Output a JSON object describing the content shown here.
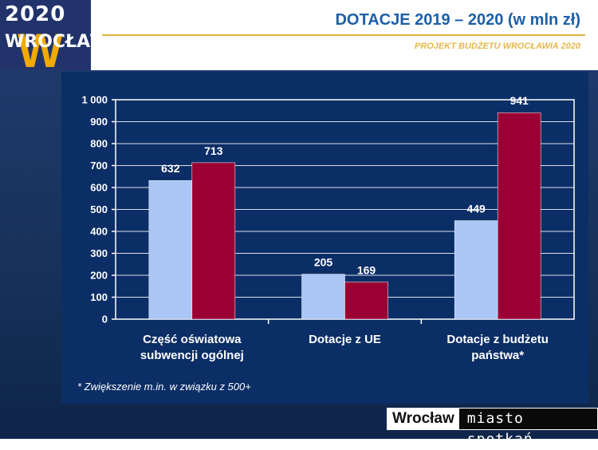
{
  "header": {
    "logo_year": "2020",
    "logo_city": "WROCŁAW",
    "logo_mark": "W",
    "title": "DOTACJE 2019 – 2020 (w mln zł)",
    "subtitle": "PROJEKT BUDŻETU WROCŁAWIA 2020"
  },
  "chart_data": {
    "type": "bar",
    "categories": [
      [
        "Część oświatowa",
        "subwencji ogólnej"
      ],
      [
        "Dotacje z UE"
      ],
      [
        "Dotacje z budżetu",
        "państwa*"
      ]
    ],
    "series": [
      {
        "values": [
          632,
          205,
          449
        ],
        "color": "#a9c6f5"
      },
      {
        "values": [
          713,
          169,
          941
        ],
        "color": "#9a0034"
      }
    ],
    "ylim": [
      0,
      1000
    ],
    "yticks": [
      "0",
      "100",
      "200",
      "300",
      "400",
      "500",
      "600",
      "700",
      "800",
      "900",
      "1 000"
    ],
    "grid": true,
    "title": "",
    "xlabel": "",
    "ylabel": ""
  },
  "footnote": "* Zwiększenie  m.in. w związku z 500+",
  "brand": {
    "name": "Wrocław",
    "tagline": "miasto spotkań"
  }
}
